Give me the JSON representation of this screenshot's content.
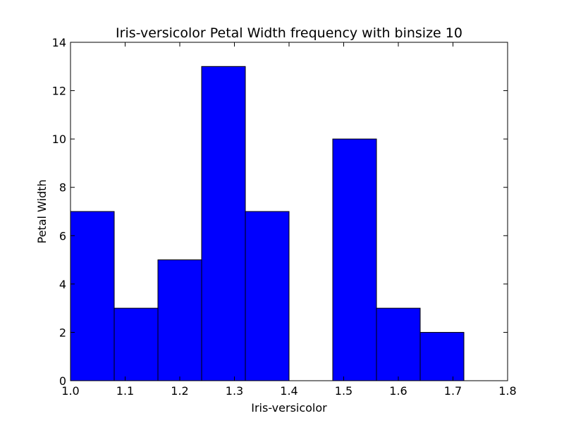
{
  "chart_data": {
    "type": "bar",
    "title": "Iris-versicolor Petal Width frequency with binsize 10",
    "xlabel": "Iris-versicolor",
    "ylabel": "Petal Width",
    "xlim": [
      1.0,
      1.8
    ],
    "ylim": [
      0,
      14
    ],
    "xticks": [
      "1.0",
      "1.1",
      "1.2",
      "1.3",
      "1.4",
      "1.5",
      "1.6",
      "1.7",
      "1.8"
    ],
    "yticks": [
      "0",
      "2",
      "4",
      "6",
      "8",
      "10",
      "12",
      "14"
    ],
    "bin_edges": [
      1.0,
      1.08,
      1.16,
      1.24,
      1.32,
      1.4,
      1.48,
      1.56,
      1.64,
      1.72,
      1.8
    ],
    "values": [
      7,
      3,
      5,
      13,
      7,
      0,
      10,
      3,
      2,
      0
    ],
    "grid": false,
    "bar_color": "#0000ff",
    "edge_color": "#000000"
  }
}
